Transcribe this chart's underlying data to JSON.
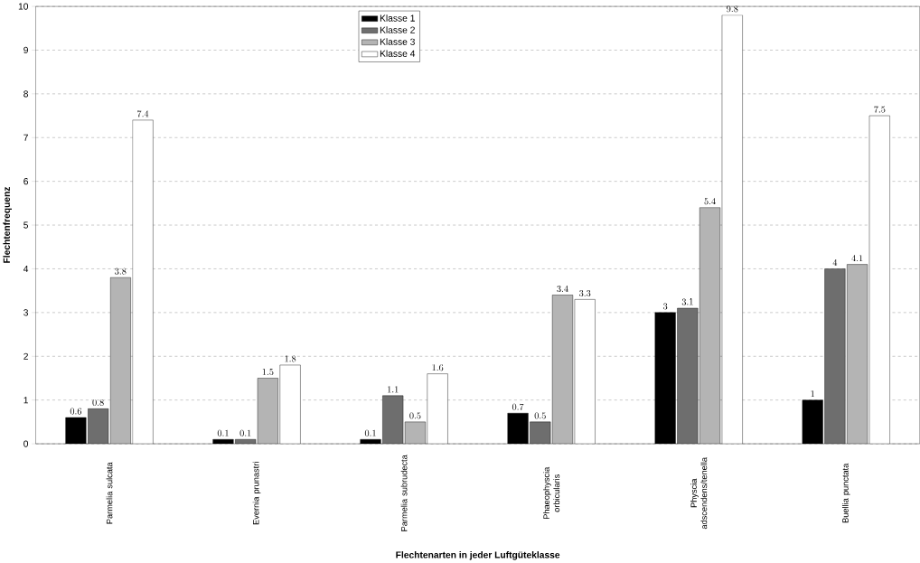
{
  "chart_data": {
    "type": "bar",
    "xlabel": "Flechtenarten in jeder Luftgüteklasse",
    "ylabel": "Flechtenfrequenz",
    "categories": [
      "Parmelia sulcata",
      "Evernia prunastri",
      "Parmelia subrudecta",
      "Phaeophyscia orbicularis",
      "Physcia adscendens/tenella",
      "Buellia punctata"
    ],
    "series": [
      {
        "name": "Klasse 1",
        "color": "#000000",
        "values": [
          0.6,
          0.1,
          0.1,
          0.7,
          3,
          1
        ]
      },
      {
        "name": "Klasse 2",
        "color": "#6e6e6e",
        "values": [
          0.8,
          0.1,
          1.1,
          0.5,
          3.1,
          4
        ]
      },
      {
        "name": "Klasse 3",
        "color": "#b4b4b4",
        "values": [
          3.8,
          1.5,
          0.5,
          3.4,
          5.4,
          4.1
        ]
      },
      {
        "name": "Klasse 4",
        "color": "#ffffff",
        "values": [
          7.4,
          1.8,
          1.6,
          3.3,
          9.8,
          7.5
        ]
      }
    ],
    "ylim": [
      0,
      10
    ],
    "yticks": [
      0,
      1,
      2,
      3,
      4,
      5,
      6,
      7,
      8,
      9,
      10
    ],
    "grid": "y",
    "legend": "top",
    "data_labels": true
  }
}
